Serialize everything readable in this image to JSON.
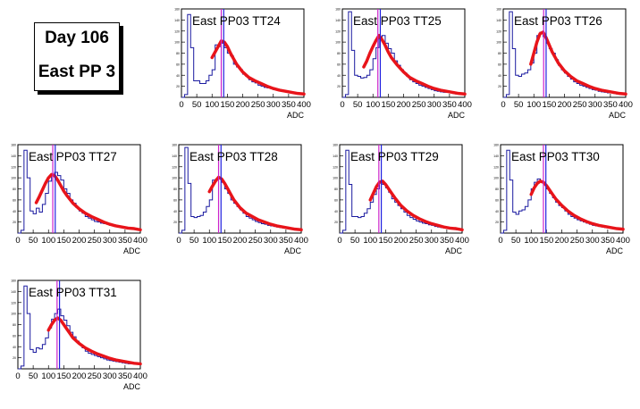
{
  "label": {
    "line1": "Day 106",
    "line2": "East PP 3"
  },
  "colors": {
    "histogram": "#1a1aa0",
    "fit": "#e8141a",
    "marker_blue": "#2020e0",
    "marker_magenta": "#cc22cc",
    "frame": "#000000"
  },
  "axis": {
    "xlabel": "ADC",
    "xlim": [
      0,
      400
    ],
    "x_tick_labels": [
      "0",
      "50",
      "100",
      "150",
      "200",
      "250",
      "300",
      "350",
      "400"
    ]
  },
  "chart_data": [
    {
      "type": "line",
      "title": "East PP03 TT24",
      "xlabel": "ADC",
      "xlim": [
        0,
        400
      ],
      "ylim": [
        0,
        160
      ],
      "yticks": [
        20,
        40,
        60,
        80,
        100,
        120,
        140,
        160
      ],
      "y_tick_labels": [
        "20",
        "40",
        "60",
        "80",
        "100",
        "120",
        "140",
        "160"
      ],
      "marker_blue": 138,
      "marker_magenta": 130,
      "hist": [
        0,
        5,
        150,
        90,
        30,
        30,
        25,
        25,
        30,
        40,
        50,
        95,
        92,
        98,
        90,
        80,
        75,
        60,
        55,
        50,
        42,
        38,
        32,
        28,
        26,
        22,
        20,
        18,
        17,
        16,
        14,
        13,
        12,
        11,
        10,
        10,
        9,
        8,
        8,
        7
      ],
      "fit": [
        [
          100,
          72
        ],
        [
          110,
          82
        ],
        [
          120,
          92
        ],
        [
          130,
          102
        ],
        [
          140,
          100
        ],
        [
          150,
          92
        ],
        [
          160,
          80
        ],
        [
          170,
          70
        ],
        [
          180,
          60
        ],
        [
          190,
          53
        ],
        [
          200,
          46
        ],
        [
          220,
          36
        ],
        [
          240,
          30
        ],
        [
          260,
          25
        ],
        [
          280,
          20
        ],
        [
          300,
          16
        ],
        [
          320,
          13
        ],
        [
          340,
          11
        ],
        [
          360,
          9
        ],
        [
          380,
          7
        ],
        [
          400,
          6
        ]
      ]
    },
    {
      "type": "line",
      "title": "East PP03 TT25",
      "xlabel": "ADC",
      "xlim": [
        0,
        400
      ],
      "ylim": [
        0,
        160
      ],
      "yticks": [
        20,
        40,
        60,
        80,
        100,
        120,
        140,
        160
      ],
      "y_tick_labels": [
        "20",
        "40",
        "60",
        "80",
        "100",
        "120",
        "140",
        "160"
      ],
      "marker_blue": 124,
      "marker_magenta": 116,
      "hist": [
        0,
        5,
        155,
        85,
        40,
        38,
        35,
        36,
        40,
        50,
        70,
        90,
        108,
        112,
        98,
        88,
        80,
        66,
        58,
        50,
        44,
        38,
        32,
        28,
        25,
        22,
        20,
        18,
        16,
        14,
        12,
        11,
        10,
        9,
        9,
        8,
        7,
        6,
        6,
        5
      ],
      "fit": [
        [
          70,
          55
        ],
        [
          80,
          66
        ],
        [
          90,
          80
        ],
        [
          100,
          92
        ],
        [
          110,
          103
        ],
        [
          120,
          112
        ],
        [
          130,
          104
        ],
        [
          140,
          94
        ],
        [
          150,
          82
        ],
        [
          160,
          72
        ],
        [
          180,
          58
        ],
        [
          200,
          46
        ],
        [
          220,
          36
        ],
        [
          240,
          30
        ],
        [
          260,
          25
        ],
        [
          280,
          20
        ],
        [
          300,
          16
        ],
        [
          320,
          13
        ],
        [
          340,
          11
        ],
        [
          360,
          9
        ],
        [
          380,
          7
        ],
        [
          400,
          6
        ]
      ]
    },
    {
      "type": "line",
      "title": "East PP03 TT26",
      "xlabel": "ADC",
      "xlim": [
        0,
        400
      ],
      "ylim": [
        0,
        160
      ],
      "yticks": [
        20,
        40,
        60,
        80,
        100,
        120,
        140,
        160
      ],
      "y_tick_labels": [
        "20",
        "40",
        "60",
        "80",
        "100",
        "120",
        "140",
        "160"
      ],
      "marker_blue": 140,
      "marker_magenta": 132,
      "hist": [
        0,
        5,
        155,
        88,
        40,
        38,
        42,
        44,
        50,
        62,
        80,
        112,
        118,
        110,
        98,
        88,
        80,
        68,
        58,
        50,
        44,
        38,
        33,
        28,
        25,
        22,
        20,
        18,
        16,
        14,
        13,
        11,
        10,
        9,
        8,
        8,
        7,
        6,
        6,
        5
      ],
      "fit": [
        [
          90,
          60
        ],
        [
          100,
          80
        ],
        [
          110,
          100
        ],
        [
          120,
          115
        ],
        [
          130,
          118
        ],
        [
          140,
          108
        ],
        [
          150,
          95
        ],
        [
          160,
          82
        ],
        [
          170,
          72
        ],
        [
          180,
          62
        ],
        [
          200,
          48
        ],
        [
          220,
          38
        ],
        [
          240,
          30
        ],
        [
          260,
          25
        ],
        [
          280,
          20
        ],
        [
          300,
          16
        ],
        [
          320,
          13
        ],
        [
          340,
          11
        ],
        [
          360,
          9
        ],
        [
          380,
          7
        ],
        [
          400,
          6
        ]
      ]
    },
    {
      "type": "line",
      "title": "East PP03 TT27",
      "xlabel": "ADC",
      "xlim": [
        0,
        400
      ],
      "ylim": [
        0,
        160
      ],
      "yticks": [
        20,
        40,
        60,
        80,
        100,
        120,
        140,
        160
      ],
      "y_tick_labels": [
        "20",
        "40",
        "60",
        "80",
        "100",
        "120",
        "140",
        "160"
      ],
      "marker_blue": 122,
      "marker_magenta": 114,
      "hist": [
        0,
        5,
        150,
        100,
        40,
        35,
        45,
        38,
        52,
        72,
        94,
        106,
        110,
        104,
        96,
        80,
        72,
        60,
        54,
        46,
        40,
        36,
        30,
        27,
        24,
        21,
        20,
        18,
        17,
        16,
        14,
        13,
        12,
        11,
        10,
        9,
        8,
        8,
        7,
        6
      ],
      "fit": [
        [
          60,
          55
        ],
        [
          70,
          66
        ],
        [
          80,
          78
        ],
        [
          90,
          90
        ],
        [
          100,
          100
        ],
        [
          110,
          106
        ],
        [
          120,
          104
        ],
        [
          130,
          96
        ],
        [
          140,
          86
        ],
        [
          150,
          76
        ],
        [
          160,
          68
        ],
        [
          180,
          54
        ],
        [
          200,
          44
        ],
        [
          220,
          36
        ],
        [
          240,
          30
        ],
        [
          260,
          25
        ],
        [
          280,
          20
        ],
        [
          300,
          16
        ],
        [
          320,
          13
        ],
        [
          340,
          11
        ],
        [
          360,
          9
        ],
        [
          380,
          8
        ],
        [
          400,
          6
        ]
      ]
    },
    {
      "type": "line",
      "title": "East PP03 TT28",
      "xlabel": "ADC",
      "xlim": [
        0,
        400
      ],
      "ylim": [
        0,
        160
      ],
      "yticks": [
        20,
        40,
        60,
        80,
        100,
        120,
        140,
        160
      ],
      "y_tick_labels": [
        "20",
        "40",
        "60",
        "80",
        "100",
        "120",
        "140",
        "160"
      ],
      "marker_blue": 138,
      "marker_magenta": 130,
      "hist": [
        0,
        5,
        155,
        90,
        30,
        28,
        30,
        32,
        38,
        48,
        60,
        96,
        98,
        100,
        92,
        80,
        72,
        60,
        54,
        48,
        42,
        36,
        30,
        27,
        24,
        21,
        19,
        17,
        16,
        14,
        13,
        12,
        11,
        10,
        9,
        9,
        8,
        7,
        7,
        6
      ],
      "fit": [
        [
          100,
          75
        ],
        [
          110,
          85
        ],
        [
          120,
          94
        ],
        [
          130,
          101
        ],
        [
          140,
          98
        ],
        [
          150,
          90
        ],
        [
          160,
          80
        ],
        [
          170,
          70
        ],
        [
          180,
          60
        ],
        [
          190,
          53
        ],
        [
          200,
          46
        ],
        [
          220,
          36
        ],
        [
          240,
          30
        ],
        [
          260,
          24
        ],
        [
          280,
          20
        ],
        [
          300,
          16
        ],
        [
          320,
          13
        ],
        [
          340,
          11
        ],
        [
          360,
          9
        ],
        [
          380,
          7
        ],
        [
          400,
          6
        ]
      ]
    },
    {
      "type": "line",
      "title": "East PP03 TT29",
      "xlabel": "ADC",
      "xlim": [
        0,
        400
      ],
      "ylim": [
        0,
        160
      ],
      "yticks": [
        20,
        40,
        60,
        80,
        100,
        120,
        140,
        160
      ],
      "y_tick_labels": [
        "20",
        "40",
        "60",
        "80",
        "100",
        "120",
        "140",
        "160"
      ],
      "marker_blue": 136,
      "marker_magenta": 128,
      "hist": [
        0,
        5,
        150,
        88,
        30,
        30,
        28,
        30,
        36,
        44,
        56,
        70,
        80,
        94,
        88,
        82,
        74,
        62,
        56,
        50,
        44,
        38,
        32,
        28,
        25,
        22,
        20,
        18,
        17,
        15,
        14,
        12,
        11,
        10,
        9,
        8,
        8,
        7,
        6,
        6
      ],
      "fit": [
        [
          100,
          60
        ],
        [
          110,
          72
        ],
        [
          120,
          84
        ],
        [
          130,
          92
        ],
        [
          140,
          94
        ],
        [
          150,
          88
        ],
        [
          160,
          80
        ],
        [
          170,
          72
        ],
        [
          180,
          64
        ],
        [
          200,
          50
        ],
        [
          220,
          40
        ],
        [
          240,
          32
        ],
        [
          260,
          26
        ],
        [
          280,
          21
        ],
        [
          300,
          17
        ],
        [
          320,
          14
        ],
        [
          340,
          11
        ],
        [
          360,
          9
        ],
        [
          380,
          8
        ],
        [
          400,
          6
        ]
      ]
    },
    {
      "type": "line",
      "title": "East PP03 TT30",
      "xlabel": "ADC",
      "xlim": [
        0,
        400
      ],
      "ylim": [
        0,
        160
      ],
      "yticks": [
        20,
        40,
        60,
        80,
        100,
        120,
        140,
        160
      ],
      "y_tick_labels": [
        "20",
        "40",
        "60",
        "80",
        "100",
        "120",
        "140",
        "160"
      ],
      "marker_blue": 148,
      "marker_magenta": 140,
      "hist": [
        0,
        5,
        150,
        96,
        38,
        34,
        40,
        42,
        48,
        60,
        80,
        92,
        98,
        94,
        88,
        80,
        72,
        64,
        56,
        50,
        46,
        40,
        34,
        30,
        27,
        24,
        22,
        20,
        18,
        16,
        14,
        13,
        12,
        11,
        10,
        9,
        9,
        8,
        7,
        6
      ],
      "fit": [
        [
          100,
          70
        ],
        [
          110,
          82
        ],
        [
          120,
          90
        ],
        [
          130,
          94
        ],
        [
          140,
          92
        ],
        [
          150,
          86
        ],
        [
          160,
          78
        ],
        [
          170,
          70
        ],
        [
          180,
          62
        ],
        [
          200,
          50
        ],
        [
          220,
          40
        ],
        [
          240,
          32
        ],
        [
          260,
          26
        ],
        [
          280,
          21
        ],
        [
          300,
          17
        ],
        [
          320,
          14
        ],
        [
          340,
          12
        ],
        [
          360,
          10
        ],
        [
          380,
          8
        ],
        [
          400,
          7
        ]
      ]
    },
    {
      "type": "line",
      "title": "East PP03 TT31",
      "xlabel": "ADC",
      "xlim": [
        0,
        400
      ],
      "ylim": [
        0,
        160
      ],
      "yticks": [
        20,
        40,
        60,
        80,
        100,
        120,
        140,
        160
      ],
      "y_tick_labels": [
        "20",
        "40",
        "60",
        "80",
        "100",
        "120",
        "140",
        "160"
      ],
      "marker_blue": 136,
      "marker_magenta": 128,
      "hist": [
        0,
        5,
        150,
        100,
        35,
        30,
        38,
        36,
        44,
        56,
        74,
        90,
        100,
        108,
        96,
        88,
        78,
        66,
        58,
        50,
        44,
        38,
        32,
        28,
        26,
        24,
        22,
        20,
        18,
        16,
        15,
        14,
        13,
        12,
        11,
        10,
        9,
        9,
        8,
        8
      ],
      "fit": [
        [
          100,
          70
        ],
        [
          110,
          80
        ],
        [
          120,
          88
        ],
        [
          130,
          92
        ],
        [
          140,
          88
        ],
        [
          150,
          80
        ],
        [
          160,
          72
        ],
        [
          170,
          64
        ],
        [
          180,
          56
        ],
        [
          200,
          46
        ],
        [
          220,
          38
        ],
        [
          240,
          32
        ],
        [
          260,
          27
        ],
        [
          280,
          23
        ],
        [
          300,
          19
        ],
        [
          320,
          16
        ],
        [
          340,
          14
        ],
        [
          360,
          12
        ],
        [
          380,
          10
        ],
        [
          400,
          9
        ]
      ]
    }
  ]
}
